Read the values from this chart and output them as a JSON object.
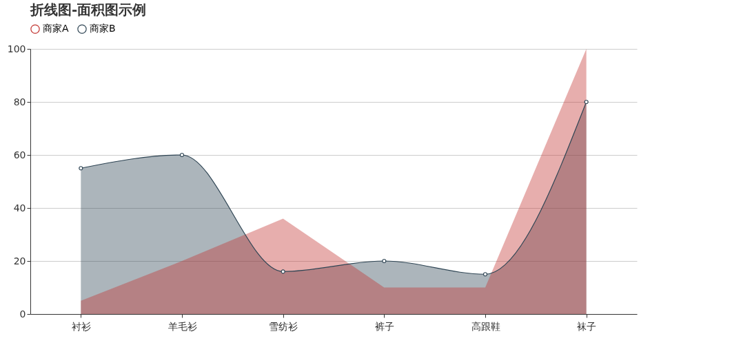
{
  "chart_data": {
    "type": "area",
    "title": "折线图-面积图示例",
    "categories": [
      "衬衫",
      "羊毛衫",
      "雪纺衫",
      "裤子",
      "高跟鞋",
      "袜子"
    ],
    "series": [
      {
        "name": "商家A",
        "color": "#c23531",
        "values": [
          5,
          20,
          36,
          10,
          10,
          100
        ],
        "marker": "none"
      },
      {
        "name": "商家B",
        "color": "#2f4554",
        "values": [
          55,
          60,
          16,
          20,
          15,
          80
        ],
        "marker": "circle"
      }
    ],
    "ylim": [
      0,
      100
    ],
    "yticks": [
      0,
      20,
      40,
      60,
      80,
      100
    ],
    "grid": "y",
    "legend": "top"
  }
}
